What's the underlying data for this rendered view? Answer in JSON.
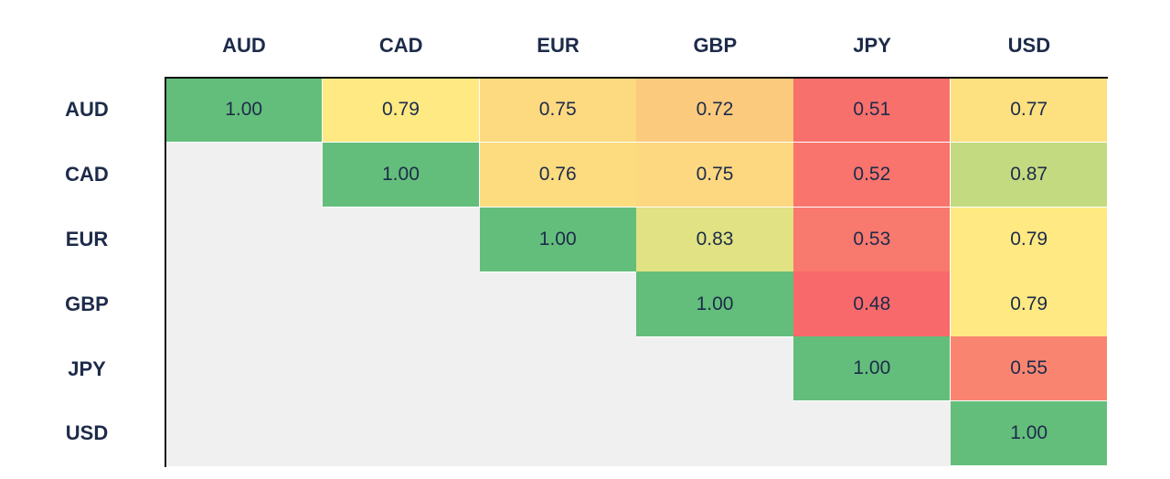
{
  "chart_data": {
    "type": "heatmap",
    "title": "",
    "columns": [
      "AUD",
      "CAD",
      "EUR",
      "GBP",
      "JPY",
      "USD"
    ],
    "rows": [
      "AUD",
      "CAD",
      "EUR",
      "GBP",
      "JPY",
      "USD"
    ],
    "values": [
      [
        1.0,
        0.79,
        0.75,
        0.72,
        0.51,
        0.77
      ],
      [
        null,
        1.0,
        0.76,
        0.75,
        0.52,
        0.87
      ],
      [
        null,
        null,
        1.0,
        0.83,
        0.53,
        0.79
      ],
      [
        null,
        null,
        null,
        1.0,
        0.48,
        0.79
      ],
      [
        null,
        null,
        null,
        null,
        1.0,
        0.55
      ],
      [
        null,
        null,
        null,
        null,
        null,
        1.0
      ]
    ],
    "labels": [
      [
        "1.00",
        "0.79",
        "0.75",
        "0.72",
        "0.51",
        "0.77"
      ],
      [
        "",
        "1.00",
        "0.76",
        "0.75",
        "0.52",
        "0.87"
      ],
      [
        "",
        "",
        "1.00",
        "0.83",
        "0.53",
        "0.79"
      ],
      [
        "",
        "",
        "",
        "1.00",
        "0.48",
        "0.79"
      ],
      [
        "",
        "",
        "",
        "",
        "1.00",
        "0.55"
      ],
      [
        "",
        "",
        "",
        "",
        "",
        "1.00"
      ]
    ],
    "colors": [
      [
        "#63be7b",
        "#fee982",
        "#fdd980",
        "#fbca7d",
        "#f8706c",
        "#fde080"
      ],
      [
        "",
        "#63be7b",
        "#fddc80",
        "#fdd880",
        "#f8746d",
        "#c4da80"
      ],
      [
        "",
        "",
        "#63be7b",
        "#e0e283",
        "#f8796e",
        "#fee982"
      ],
      [
        "",
        "",
        "",
        "#63be7b",
        "#f8696b",
        "#fee982"
      ],
      [
        "",
        "",
        "",
        "",
        "#63be7b",
        "#f98571"
      ],
      [
        "",
        "",
        "",
        "",
        "",
        "#63be7b"
      ]
    ],
    "empty_color": "#f0f0f0",
    "label_color": "#1d2b4a",
    "grid": false,
    "legend": "none"
  }
}
